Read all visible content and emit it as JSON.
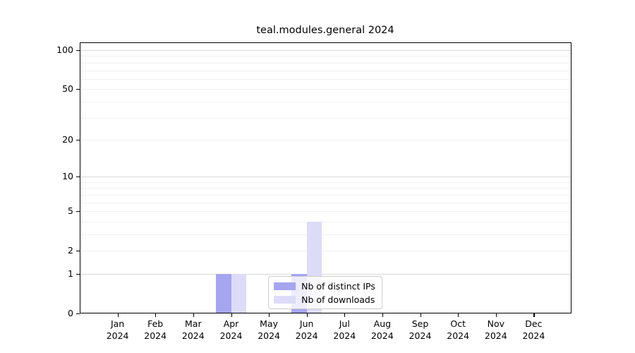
{
  "chart_data": {
    "type": "bar",
    "title": "teal.modules.general 2024",
    "xlabel": "",
    "ylabel": "",
    "categories": [
      "Jan",
      "Feb",
      "Mar",
      "Apr",
      "May",
      "Jun",
      "Jul",
      "Aug",
      "Sep",
      "Oct",
      "Nov",
      "Dec"
    ],
    "x_tick_year": "2024",
    "series": [
      {
        "name": "Nb of distinct IPs",
        "color": "#a5a5f0",
        "values": [
          0,
          0,
          0,
          1,
          0,
          1,
          0,
          0,
          0,
          0,
          0,
          0
        ]
      },
      {
        "name": "Nb of downloads",
        "color": "#dcdcf8",
        "values": [
          0,
          0,
          0,
          1,
          0,
          4,
          0,
          0,
          0,
          0,
          0,
          0
        ]
      }
    ],
    "yscale": "log10(1+x)",
    "yticks": [
      0,
      1,
      2,
      5,
      10,
      20,
      50,
      100
    ],
    "major_gridlines": [
      1,
      10,
      100
    ],
    "minor_gridlines": [
      2,
      3,
      4,
      5,
      6,
      7,
      8,
      9,
      20,
      30,
      40,
      50,
      60,
      70,
      80,
      90
    ],
    "grid": true,
    "legend_position": "lower center"
  },
  "colors": {
    "grid_minor": "#f1f1f1",
    "grid_major": "#d7d7d7",
    "axis": "#000000",
    "text": "#000000",
    "legend_border": "#cccccc"
  }
}
